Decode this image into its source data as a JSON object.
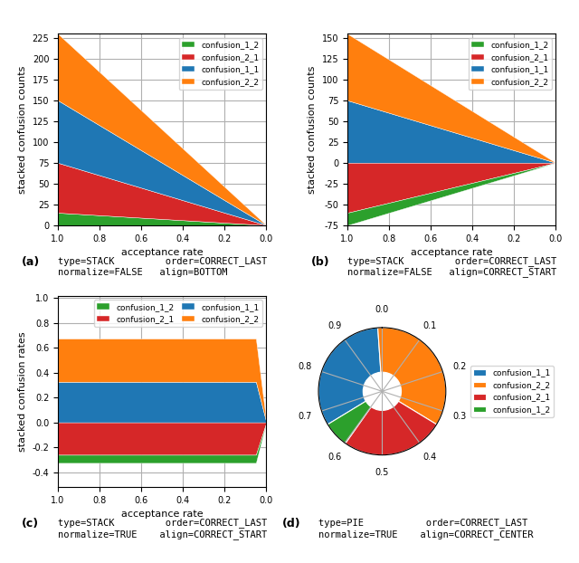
{
  "chart_data": [
    {
      "type": "area",
      "stacked": true,
      "title": "(a)",
      "annotations": [
        "type=STACK         order=CORRECT_LAST\nnormalize=FALSE   align=BOTTOM"
      ],
      "x_label": "acceptance rate",
      "y_label": "stacked confusion counts",
      "x": [
        1.0,
        0.95,
        0.9,
        0.85,
        0.8,
        0.75,
        0.7,
        0.65,
        0.6,
        0.55,
        0.5,
        0.45,
        0.4,
        0.35,
        0.3,
        0.25,
        0.2,
        0.15,
        0.1,
        0.05,
        0.0
      ],
      "series": [
        {
          "name": "confusion_1_2",
          "color": "#2ca02c",
          "values": [
            15,
            14.25,
            13.5,
            12.75,
            12,
            11.25,
            10.5,
            9.75,
            9,
            8.25,
            7.5,
            6.75,
            6,
            5.25,
            4.5,
            3.75,
            3,
            2.25,
            1.5,
            0.75,
            0
          ]
        },
        {
          "name": "confusion_2_1",
          "color": "#d62728",
          "values": [
            60,
            57,
            54,
            51,
            48,
            45,
            42,
            39,
            36,
            33,
            30,
            27,
            24,
            21,
            18,
            15,
            12,
            9,
            6,
            3,
            0
          ]
        },
        {
          "name": "confusion_1_1",
          "color": "#1f77b4",
          "values": [
            75,
            71.25,
            67.5,
            63.75,
            60,
            56.25,
            52.5,
            48.75,
            45,
            41.25,
            37.5,
            33.75,
            30,
            26.25,
            22.5,
            18.75,
            15,
            11.25,
            7.5,
            3.75,
            0
          ]
        },
        {
          "name": "confusion_2_2",
          "color": "#ff7f0e",
          "values": [
            80,
            76,
            72,
            68,
            64,
            60,
            56,
            52,
            48,
            44,
            40,
            36,
            32,
            28,
            24,
            20,
            16,
            12,
            8,
            4,
            0
          ]
        }
      ],
      "xlim": [
        1.0,
        0.0
      ],
      "xticks": [
        1.0,
        0.8,
        0.6,
        0.4,
        0.2,
        0.0
      ],
      "ylim": [
        0,
        230
      ],
      "yticks": [
        0,
        25,
        50,
        75,
        100,
        125,
        150,
        175,
        200,
        225
      ],
      "grid": true,
      "legend": "upper right"
    },
    {
      "type": "area",
      "stacked": true,
      "title": "(b)",
      "annotations": [
        "type=STACK         order=CORRECT_LAST\nnormalize=FALSE   align=CORRECT_START"
      ],
      "x_label": "acceptance rate",
      "y_label": "stacked confusion counts",
      "x": [
        1.0,
        0.95,
        0.9,
        0.85,
        0.8,
        0.75,
        0.7,
        0.65,
        0.6,
        0.55,
        0.5,
        0.45,
        0.4,
        0.35,
        0.3,
        0.25,
        0.2,
        0.15,
        0.1,
        0.05,
        0.0
      ],
      "series": [
        {
          "name": "confusion_1_2",
          "color": "#2ca02c",
          "values": [
            -15,
            -14.25,
            -13.5,
            -12.75,
            -12,
            -11.25,
            -10.5,
            -9.75,
            -9,
            -8.25,
            -7.5,
            -6.75,
            -6,
            -5.25,
            -4.5,
            -3.75,
            -3,
            -2.25,
            -1.5,
            -0.75,
            0
          ]
        },
        {
          "name": "confusion_2_1",
          "color": "#d62728",
          "values": [
            -60,
            -57,
            -54,
            -51,
            -48,
            -45,
            -42,
            -39,
            -36,
            -33,
            -30,
            -27,
            -24,
            -21,
            -18,
            -15,
            -12,
            -9,
            -6,
            -3,
            0
          ]
        },
        {
          "name": "confusion_1_1",
          "color": "#1f77b4",
          "values": [
            75,
            71.25,
            67.5,
            63.75,
            60,
            56.25,
            52.5,
            48.75,
            45,
            41.25,
            37.5,
            33.75,
            30,
            26.25,
            22.5,
            18.75,
            15,
            11.25,
            7.5,
            3.75,
            0
          ]
        },
        {
          "name": "confusion_2_2",
          "color": "#ff7f0e",
          "values": [
            80,
            76,
            72,
            68,
            64,
            60,
            56,
            52,
            48,
            44,
            40,
            36,
            32,
            28,
            24,
            20,
            16,
            12,
            8,
            4,
            0
          ]
        }
      ],
      "xlim": [
        1.0,
        0.0
      ],
      "xticks": [
        1.0,
        0.8,
        0.6,
        0.4,
        0.2,
        0.0
      ],
      "ylim": [
        -75,
        155
      ],
      "yticks": [
        -75,
        -50,
        -25,
        0,
        25,
        50,
        75,
        100,
        125,
        150
      ],
      "grid": true,
      "legend": "upper right"
    },
    {
      "type": "area",
      "stacked": true,
      "title": "(c)",
      "annotations": [
        "type=STACK         order=CORRECT_LAST\nnormalize=TRUE    align=CORRECT_START"
      ],
      "x_label": "acceptance rate",
      "y_label": "stacked confusion rates",
      "x": [
        1.0,
        0.95,
        0.9,
        0.85,
        0.8,
        0.75,
        0.7,
        0.65,
        0.6,
        0.55,
        0.5,
        0.45,
        0.4,
        0.35,
        0.3,
        0.25,
        0.2,
        0.15,
        0.1,
        0.05,
        0.0
      ],
      "series": [
        {
          "name": "confusion_1_2",
          "color": "#2ca02c",
          "values": [
            -0.06521739130434782,
            -0.06521739130434782,
            -0.06521739130434782,
            -0.06521739130434782,
            -0.06521739130434782,
            -0.06521739130434782,
            -0.06521739130434782,
            -0.06521739130434782,
            -0.06521739130434782,
            -0.06521739130434782,
            -0.06521739130434782,
            -0.06521739130434782,
            -0.06521739130434782,
            -0.06521739130434782,
            -0.06521739130434782,
            -0.06521739130434782,
            -0.06521739130434782,
            -0.06521739130434782,
            -0.06521739130434782,
            -0.06521739130434782,
            0
          ]
        },
        {
          "name": "confusion_2_1",
          "color": "#d62728",
          "values": [
            -0.2608695652173913,
            -0.2608695652173913,
            -0.2608695652173913,
            -0.2608695652173913,
            -0.2608695652173913,
            -0.2608695652173913,
            -0.2608695652173913,
            -0.2608695652173913,
            -0.2608695652173913,
            -0.2608695652173913,
            -0.2608695652173913,
            -0.2608695652173913,
            -0.2608695652173913,
            -0.2608695652173913,
            -0.2608695652173913,
            -0.2608695652173913,
            -0.2608695652173913,
            -0.2608695652173913,
            -0.2608695652173913,
            -0.2608695652173913,
            0
          ]
        },
        {
          "name": "confusion_1_1",
          "color": "#1f77b4",
          "values": [
            0.32608695652173914,
            0.32608695652173914,
            0.32608695652173914,
            0.32608695652173914,
            0.32608695652173914,
            0.32608695652173914,
            0.32608695652173914,
            0.32608695652173914,
            0.32608695652173914,
            0.32608695652173914,
            0.32608695652173914,
            0.32608695652173914,
            0.32608695652173914,
            0.32608695652173914,
            0.32608695652173914,
            0.32608695652173914,
            0.32608695652173914,
            0.32608695652173914,
            0.32608695652173914,
            0.32608695652173914,
            0
          ]
        },
        {
          "name": "confusion_2_2",
          "color": "#ff7f0e",
          "values": [
            0.34782608695652173,
            0.34782608695652173,
            0.34782608695652173,
            0.34782608695652173,
            0.34782608695652173,
            0.34782608695652173,
            0.34782608695652173,
            0.34782608695652173,
            0.34782608695652173,
            0.34782608695652173,
            0.34782608695652173,
            0.34782608695652173,
            0.34782608695652173,
            0.34782608695652173,
            0.34782608695652173,
            0.34782608695652173,
            0.34782608695652173,
            0.34782608695652173,
            0.34782608695652173,
            0.34782608695652173,
            0
          ]
        }
      ],
      "xlim": [
        1.0,
        0.0
      ],
      "xticks": [
        1.0,
        0.8,
        0.6,
        0.4,
        0.2,
        0.0
      ],
      "ylim": [
        -0.52,
        1.02
      ],
      "yticks": [
        -0.4,
        -0.2,
        0.0,
        0.2,
        0.4,
        0.6,
        0.8,
        1.0
      ],
      "grid": true,
      "legend": "upper right"
    },
    {
      "type": "pie",
      "title": "(d)",
      "annotations": [
        "type=PIE           order=CORRECT_LAST\nnormalize=TRUE    align=CORRECT_CENTER"
      ],
      "categories": [
        "confusion_1_1",
        "confusion_2_2",
        "confusion_2_1",
        "confusion_1_2"
      ],
      "values": [
        0.32608695652173914,
        0.34782608695652173,
        0.2608695652173913,
        0.06521739130434782
      ],
      "colors": [
        "#1f77b4",
        "#ff7f0e",
        "#d62728",
        "#2ca02c"
      ],
      "xticks": [
        0.0,
        0.1,
        0.2,
        0.3,
        0.4,
        0.5,
        0.6,
        0.7,
        0.8,
        0.9
      ],
      "tick_labels": "x",
      "grid": true,
      "legend": "center left"
    }
  ]
}
